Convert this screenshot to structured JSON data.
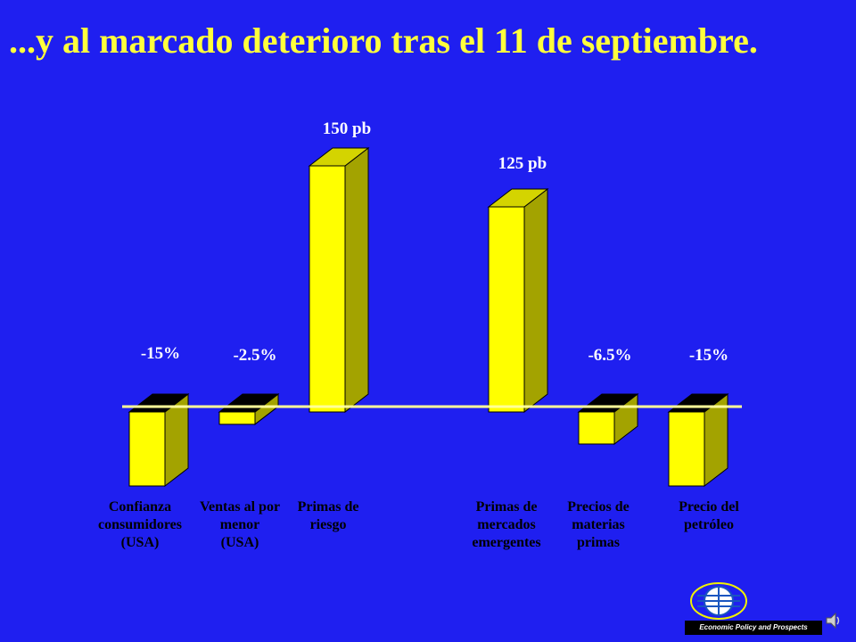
{
  "slide": {
    "title": "...y al marcado deterioro tras el 11 de septiembre."
  },
  "chart_data": {
    "type": "bar",
    "categories": [
      [
        "Confianza",
        "consumidores",
        "(USA)"
      ],
      [
        "Ventas al por",
        "menor",
        "(USA)"
      ],
      [
        "Primas de",
        "riesgo"
      ],
      [
        "Primas de",
        "mercados",
        "emergentes"
      ],
      [
        "Precios de",
        "materias",
        "primas"
      ],
      [
        "Precio del",
        "petróleo"
      ]
    ],
    "values": [
      -15,
      -2.5,
      150,
      125,
      -6.5,
      -15
    ],
    "units": [
      "%",
      "%",
      "pb",
      "pb",
      "%",
      "%"
    ],
    "data_labels": [
      "-15%",
      "-2.5%",
      "150 pb",
      "125 pb",
      "-6.5%",
      "-15%"
    ],
    "title": "",
    "xlabel": "",
    "ylabel": "",
    "grid": false,
    "legend": "none"
  },
  "colors": {
    "background": "#1f1ff0",
    "title": "#ffff3c",
    "bar_front": "#ffff00",
    "bar_side": "#a3a300",
    "bar_top": "#d4d400",
    "bar_top_negative": "#000000",
    "baseline": "#ffff99",
    "label_text": "#000000",
    "value_text": "#ffffff"
  },
  "logo": {
    "caption": "Economic Policy and Prospects",
    "icon": "globe-logo-icon"
  },
  "audio": {
    "icon": "speaker-icon"
  }
}
